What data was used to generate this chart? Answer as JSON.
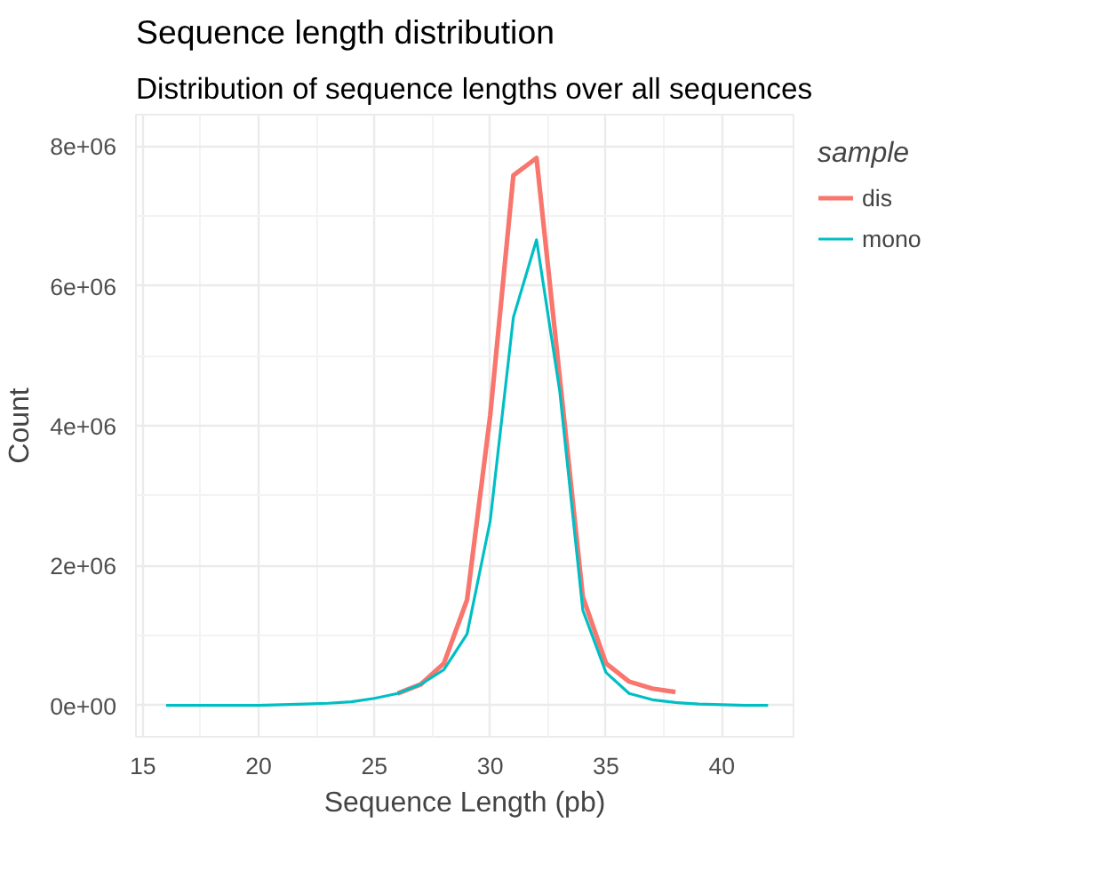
{
  "chart_data": {
    "type": "line",
    "title": "Sequence length distribution",
    "subtitle": "Distribution of sequence lengths over all sequences",
    "xlabel": "Sequence Length (pb)",
    "ylabel": "Count",
    "legend_title": "sample",
    "xlim": [
      14.7,
      43.1
    ],
    "xticks": [
      15,
      20,
      25,
      30,
      35,
      40
    ],
    "ylim": [
      -450000,
      8450000
    ],
    "yticks": [
      {
        "value": 0,
        "label": "0e+00"
      },
      {
        "value": 2000000,
        "label": "2e+06"
      },
      {
        "value": 4000000,
        "label": "4e+06"
      },
      {
        "value": 6000000,
        "label": "6e+06"
      },
      {
        "value": 8000000,
        "label": "8e+06"
      }
    ],
    "grid": true,
    "legend": "right",
    "series": [
      {
        "name": "dis",
        "color": "#f8766d",
        "x": [
          26,
          27,
          28,
          29,
          30,
          31,
          32,
          33,
          34,
          35,
          36,
          37,
          38
        ],
        "values": [
          170000,
          300000,
          600000,
          1510000,
          4150000,
          7580000,
          7830000,
          4700000,
          1550000,
          600000,
          340000,
          240000,
          190000
        ]
      },
      {
        "name": "mono",
        "color": "#00bfc4",
        "x": [
          16,
          17,
          18,
          19,
          20,
          21,
          22,
          23,
          24,
          25,
          26,
          27,
          28,
          29,
          30,
          31,
          32,
          33,
          34,
          35,
          36,
          37,
          38,
          39,
          40,
          41,
          42
        ],
        "values": [
          0,
          0,
          0,
          0,
          0,
          10000,
          20000,
          30000,
          50000,
          100000,
          170000,
          300000,
          510000,
          1020000,
          2640000,
          5550000,
          6660000,
          4500000,
          1360000,
          470000,
          170000,
          80000,
          40000,
          20000,
          10000,
          0,
          0
        ]
      }
    ]
  }
}
